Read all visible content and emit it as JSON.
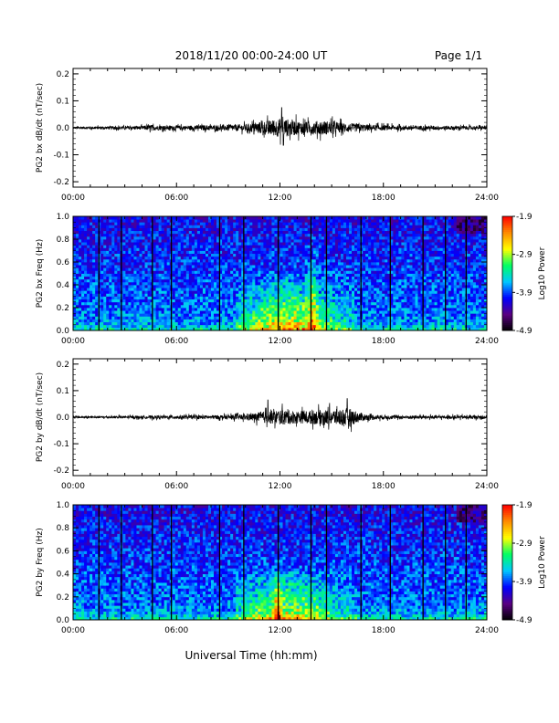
{
  "header": {
    "date_range": "2018/11/20  00:00-24:00 UT",
    "page": "Page 1/1"
  },
  "xlabel": "Universal Time (hh:mm)",
  "chart_data": [
    {
      "type": "line",
      "ylabel": "PG2 bx dB/dt (nT/sec)",
      "x_ticks": [
        "00:00",
        "06:00",
        "12:00",
        "18:00",
        "24:00"
      ],
      "y_ticks": [
        "0.2",
        "0.1",
        "0.0",
        "-0.1",
        "-0.2"
      ],
      "xlim": [
        0,
        24
      ],
      "ylim": [
        -0.22,
        0.22
      ],
      "envelope": {
        "x": [
          0,
          1,
          2,
          3,
          4,
          4.5,
          5,
          6,
          7,
          8,
          9,
          10,
          10.5,
          11,
          11.5,
          12,
          12.5,
          13,
          13.5,
          14,
          14.5,
          15,
          15.5,
          16,
          17,
          18,
          19,
          20,
          21,
          22,
          23,
          24
        ],
        "amplitude": [
          0.006,
          0.007,
          0.008,
          0.009,
          0.01,
          0.016,
          0.012,
          0.012,
          0.013,
          0.014,
          0.016,
          0.02,
          0.026,
          0.034,
          0.042,
          0.05,
          0.046,
          0.038,
          0.032,
          0.036,
          0.038,
          0.034,
          0.028,
          0.024,
          0.018,
          0.014,
          0.012,
          0.012,
          0.011,
          0.011,
          0.01,
          0.01
        ]
      },
      "peaks": [
        {
          "x": 12.1,
          "y": 0.075
        },
        {
          "x": 12.2,
          "y": -0.065
        }
      ]
    },
    {
      "type": "heatmap",
      "ylabel": "PG2 bx Freq (Hz)",
      "x_ticks": [
        "00:00",
        "06:00",
        "12:00",
        "18:00",
        "24:00"
      ],
      "y_ticks": [
        "1.0",
        "0.8",
        "0.6",
        "0.4",
        "0.2",
        "0.0"
      ],
      "xlim": [
        0,
        24
      ],
      "ylim": [
        0,
        1.0
      ],
      "colorbar": {
        "label": "Log10 Power",
        "ticks": [
          "-1.9",
          "-2.9",
          "-3.9",
          "-4.9"
        ],
        "range": [
          -4.9,
          -1.9
        ],
        "colors": [
          "#000000",
          "#5a0082",
          "#0000ff",
          "#00c8ff",
          "#00ff64",
          "#ffff00",
          "#ff8c00",
          "#ff0000"
        ]
      },
      "vertical_lines_hours": [
        1.5,
        2.8,
        4.6,
        5.7,
        8.5,
        9.9,
        11.9,
        13.8,
        14.7,
        16.7,
        18.4,
        20.3,
        21.6,
        22.8
      ],
      "activity": [
        {
          "t0": 9.5,
          "t1": 16.5,
          "center": 12.5,
          "f_max": 0.55,
          "strength": 1.0
        },
        {
          "t0": 13.5,
          "t1": 14.2,
          "center": 13.9,
          "f_max": 0.95,
          "strength": 0.6
        }
      ]
    },
    {
      "type": "line",
      "ylabel": "PG2 by dB/dt (nT/sec)",
      "x_ticks": [
        "00:00",
        "06:00",
        "12:00",
        "18:00",
        "24:00"
      ],
      "y_ticks": [
        "0.2",
        "0.1",
        "0.0",
        "-0.1",
        "-0.2"
      ],
      "xlim": [
        0,
        24
      ],
      "ylim": [
        -0.22,
        0.22
      ],
      "envelope": {
        "x": [
          0,
          1,
          2,
          3,
          4,
          5,
          6,
          7,
          8,
          9,
          10,
          10.5,
          11,
          11.5,
          12,
          12.5,
          13,
          13.5,
          14,
          14.5,
          15,
          15.5,
          16,
          16.5,
          17,
          18,
          19,
          20,
          21,
          22,
          23,
          24
        ],
        "amplitude": [
          0.005,
          0.006,
          0.006,
          0.007,
          0.008,
          0.009,
          0.01,
          0.01,
          0.011,
          0.012,
          0.016,
          0.022,
          0.03,
          0.036,
          0.04,
          0.038,
          0.034,
          0.034,
          0.038,
          0.04,
          0.042,
          0.046,
          0.05,
          0.03,
          0.016,
          0.012,
          0.01,
          0.009,
          0.009,
          0.009,
          0.01,
          0.01
        ]
      },
      "peaks": [
        {
          "x": 15.9,
          "y": 0.07
        },
        {
          "x": 11.3,
          "y": 0.065
        }
      ]
    },
    {
      "type": "heatmap",
      "ylabel": "PG2 by Freq (Hz)",
      "x_ticks": [
        "00:00",
        "06:00",
        "12:00",
        "18:00",
        "24:00"
      ],
      "y_ticks": [
        "1.0",
        "0.8",
        "0.6",
        "0.4",
        "0.2",
        "0.0"
      ],
      "xlim": [
        0,
        24
      ],
      "ylim": [
        0,
        1.0
      ],
      "colorbar": {
        "label": "Log10 Power",
        "ticks": [
          "-1.9",
          "-2.9",
          "-3.9",
          "-4.9"
        ],
        "range": [
          -4.9,
          -1.9
        ],
        "colors": [
          "#000000",
          "#5a0082",
          "#0000ff",
          "#00c8ff",
          "#00ff64",
          "#ffff00",
          "#ff8c00",
          "#ff0000"
        ]
      },
      "vertical_lines_hours": [
        1.5,
        2.8,
        4.6,
        5.7,
        8.5,
        9.9,
        11.9,
        13.8,
        14.7,
        16.7,
        18.4,
        20.3,
        21.6,
        22.8
      ],
      "activity": [
        {
          "t0": 9.5,
          "t1": 16.5,
          "center": 12.5,
          "f_max": 0.5,
          "strength": 0.9
        },
        {
          "t0": 11.6,
          "t1": 12.2,
          "center": 11.9,
          "f_max": 0.5,
          "strength": 0.8
        }
      ]
    }
  ]
}
